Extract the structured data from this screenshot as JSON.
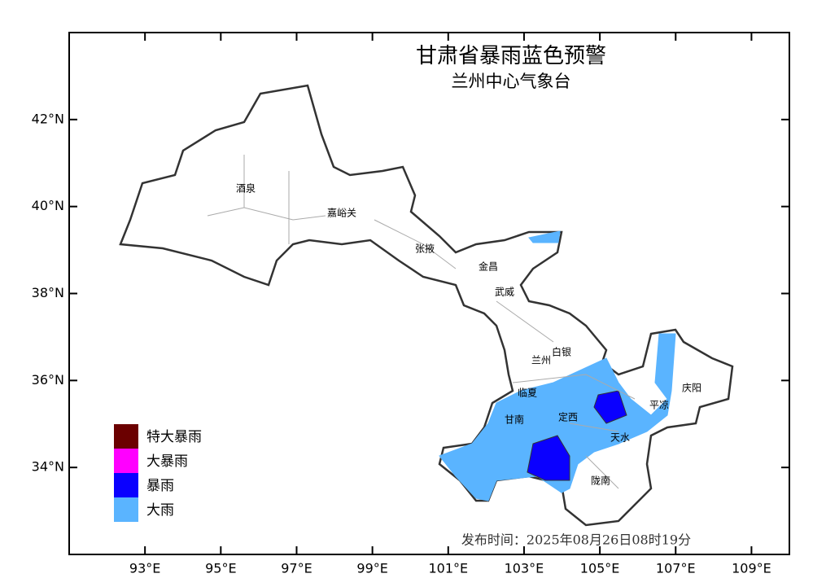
{
  "map": {
    "title": "甘肃省暴雨蓝色预警",
    "subtitle": "兰州中心气象台",
    "release_time": "发布时间：2025年08月26日08时19分",
    "xlim": [
      91,
      110
    ],
    "ylim": [
      32,
      44
    ],
    "xticks": [
      {
        "value": 93,
        "label": "93°E"
      },
      {
        "value": 95,
        "label": "95°E"
      },
      {
        "value": 97,
        "label": "97°E"
      },
      {
        "value": 99,
        "label": "99°E"
      },
      {
        "value": 101,
        "label": "101°E"
      },
      {
        "value": 103,
        "label": "103°E"
      },
      {
        "value": 105,
        "label": "105°E"
      },
      {
        "value": 107,
        "label": "107°E"
      },
      {
        "value": 109,
        "label": "109°E"
      }
    ],
    "yticks": [
      {
        "value": 34,
        "label": "34°N"
      },
      {
        "value": 36,
        "label": "36°N"
      },
      {
        "value": 38,
        "label": "38°N"
      },
      {
        "value": 40,
        "label": "40°N"
      },
      {
        "value": 42,
        "label": "42°N"
      }
    ],
    "legend": [
      {
        "name": "特大暴雨",
        "color": "#6b0000"
      },
      {
        "name": "大暴雨",
        "color": "#ff00ff"
      },
      {
        "name": "暴雨",
        "color": "#0a00ff"
      },
      {
        "name": "大雨",
        "color": "#5ab4ff"
      }
    ],
    "cities": [
      "酒泉",
      "嘉峪关",
      "张掖",
      "金昌",
      "武威",
      "白银",
      "兰州",
      "临夏",
      "甘南",
      "定西",
      "平凉",
      "庆阳",
      "天水",
      "陇南"
    ]
  }
}
